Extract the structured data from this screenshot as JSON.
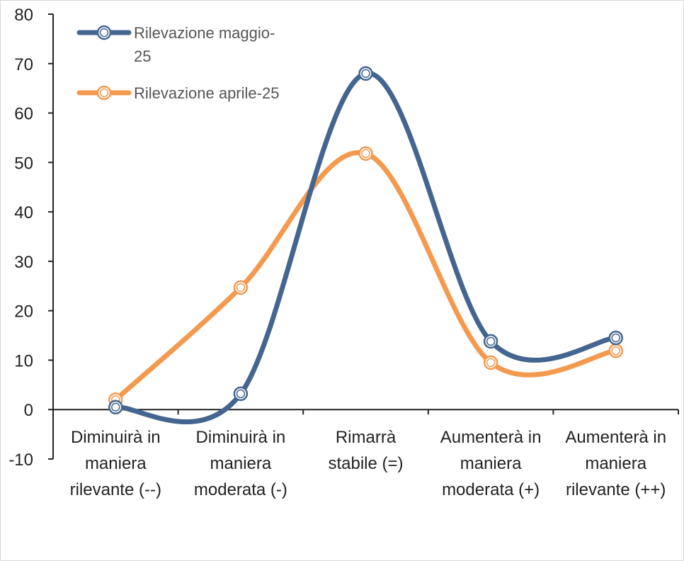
{
  "chart_data": {
    "type": "line",
    "smooth": true,
    "categories": [
      [
        "Diminuirà in",
        "maniera",
        "rilevante (--)"
      ],
      [
        "Diminuirà in",
        "maniera",
        "moderata (-)"
      ],
      [
        "Rimarrà",
        "stabile (=)"
      ],
      [
        "Aumenterà in",
        "maniera",
        "moderata (+)"
      ],
      [
        "Aumenterà in",
        "maniera",
        "rilevante (++)"
      ]
    ],
    "series": [
      {
        "name": [
          "Rilevazione maggio-",
          "25"
        ],
        "color": "#44658f",
        "values": [
          0.5,
          3.2,
          68.0,
          13.8,
          14.5
        ]
      },
      {
        "name": [
          "Rilevazione aprile-25"
        ],
        "color": "#f49a4f",
        "values": [
          2.0,
          24.7,
          51.8,
          9.5,
          11.9
        ]
      }
    ],
    "ylim": [
      -10,
      80
    ],
    "yticks": [
      "-10",
      "0",
      "10",
      "20",
      "30",
      "40",
      "50",
      "60",
      "70",
      "80"
    ],
    "grid": false,
    "legend_position": "top-left"
  }
}
